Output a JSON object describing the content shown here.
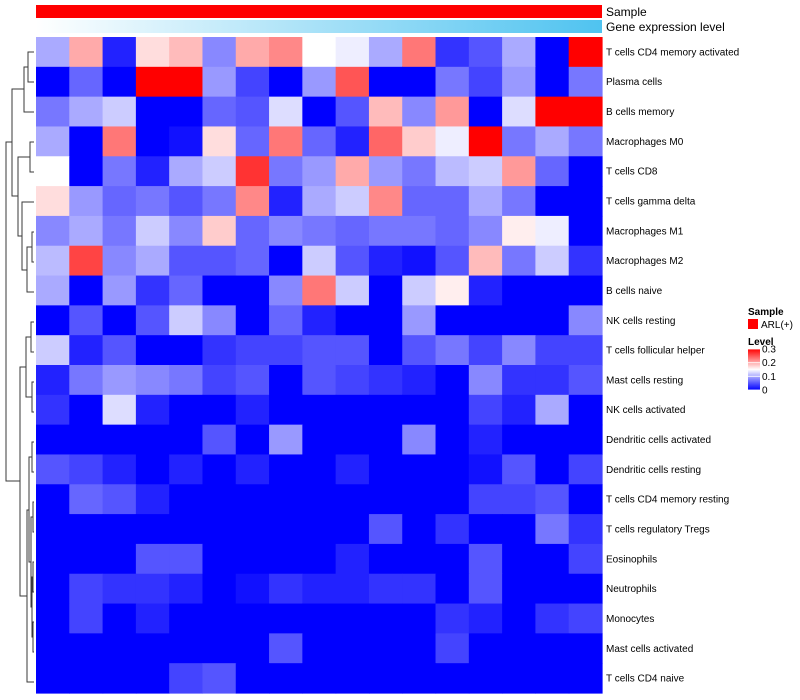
{
  "chart_data": {
    "type": "heatmap",
    "annotations": [
      {
        "name": "Sample",
        "type": "constant",
        "color": "#ff0000"
      },
      {
        "name": "Gene expression level",
        "type": "gradient",
        "color_low": "#ffffff",
        "color_high": "#4fc3f0"
      }
    ],
    "rows": [
      "T cells CD4 memory activated",
      "Plasma cells",
      "B cells memory",
      "Macrophages M0",
      "T cells CD8",
      "T cells gamma delta",
      "Macrophages M1",
      "Macrophages M2",
      "B cells naive",
      "NK cells resting",
      "T cells follicular helper",
      "Mast cells resting",
      "NK cells activated",
      "Dendritic cells activated",
      "Dendritic cells resting",
      "T cells CD4 memory resting",
      "T cells regulatory  Tregs",
      "Eosinophils",
      "Neutrophils",
      "Monocytes",
      "Mast cells activated",
      "T cells CD4 naive"
    ],
    "n_columns": 17,
    "values": [
      [
        0.1,
        0.2,
        0.02,
        0.17,
        0.19,
        0.08,
        0.2,
        0.22,
        0.15,
        0.14,
        0.1,
        0.23,
        0.03,
        0.05,
        0.1,
        0.0,
        0.3
      ],
      [
        0.0,
        0.06,
        0.0,
        0.3,
        0.3,
        0.09,
        0.04,
        0.0,
        0.09,
        0.25,
        0.0,
        0.0,
        0.07,
        0.04,
        0.09,
        0.0,
        0.07
      ],
      [
        0.07,
        0.1,
        0.12,
        0.0,
        0.0,
        0.06,
        0.05,
        0.13,
        0.0,
        0.05,
        0.19,
        0.08,
        0.21,
        0.0,
        0.13,
        0.3,
        0.3
      ],
      [
        0.1,
        0.0,
        0.23,
        0.0,
        0.01,
        0.17,
        0.06,
        0.23,
        0.06,
        0.02,
        0.24,
        0.18,
        0.14,
        0.3,
        0.07,
        0.1,
        0.07
      ],
      [
        0.15,
        0.0,
        0.07,
        0.02,
        0.1,
        0.12,
        0.27,
        0.07,
        0.09,
        0.2,
        0.09,
        0.07,
        0.11,
        0.12,
        0.21,
        0.06,
        0.0
      ],
      [
        0.17,
        0.09,
        0.06,
        0.07,
        0.05,
        0.07,
        0.22,
        0.02,
        0.1,
        0.12,
        0.22,
        0.06,
        0.06,
        0.1,
        0.07,
        0.0,
        0.0
      ],
      [
        0.08,
        0.1,
        0.07,
        0.12,
        0.08,
        0.18,
        0.06,
        0.08,
        0.07,
        0.06,
        0.07,
        0.07,
        0.06,
        0.08,
        0.16,
        0.14,
        0.0
      ],
      [
        0.11,
        0.26,
        0.08,
        0.1,
        0.05,
        0.05,
        0.06,
        0.0,
        0.12,
        0.05,
        0.02,
        0.01,
        0.05,
        0.19,
        0.07,
        0.12,
        0.03
      ],
      [
        0.1,
        0.0,
        0.09,
        0.03,
        0.06,
        0.0,
        0.0,
        0.08,
        0.23,
        0.12,
        0.0,
        0.12,
        0.16,
        0.02,
        0.0,
        0.0,
        0.0
      ],
      [
        0.0,
        0.05,
        0.0,
        0.05,
        0.12,
        0.08,
        0.0,
        0.06,
        0.02,
        0.0,
        0.0,
        0.09,
        0.0,
        0.0,
        0.0,
        0.0,
        0.08
      ],
      [
        0.12,
        0.02,
        0.05,
        0.0,
        0.0,
        0.03,
        0.04,
        0.04,
        0.05,
        0.05,
        0.0,
        0.05,
        0.07,
        0.04,
        0.08,
        0.04,
        0.04
      ],
      [
        0.02,
        0.07,
        0.09,
        0.08,
        0.07,
        0.04,
        0.05,
        0.0,
        0.05,
        0.04,
        0.03,
        0.02,
        0.0,
        0.08,
        0.03,
        0.03,
        0.05
      ],
      [
        0.03,
        0.0,
        0.13,
        0.02,
        0.0,
        0.0,
        0.02,
        0.0,
        0.0,
        0.0,
        0.0,
        0.0,
        0.0,
        0.04,
        0.02,
        0.1,
        0.0
      ],
      [
        0.0,
        0.0,
        0.0,
        0.0,
        0.0,
        0.05,
        0.0,
        0.09,
        0.0,
        0.0,
        0.0,
        0.08,
        0.0,
        0.02,
        0.0,
        0.0,
        0.0
      ],
      [
        0.05,
        0.04,
        0.02,
        0.0,
        0.02,
        0.0,
        0.02,
        0.0,
        0.0,
        0.02,
        0.0,
        0.0,
        0.0,
        0.01,
        0.05,
        0.0,
        0.04
      ],
      [
        0.0,
        0.06,
        0.05,
        0.02,
        0.0,
        0.0,
        0.0,
        0.0,
        0.0,
        0.0,
        0.0,
        0.0,
        0.0,
        0.04,
        0.04,
        0.05,
        0.0
      ],
      [
        0.0,
        0.0,
        0.0,
        0.0,
        0.0,
        0.0,
        0.0,
        0.0,
        0.0,
        0.0,
        0.05,
        0.0,
        0.03,
        0.0,
        0.0,
        0.07,
        0.03
      ],
      [
        0.0,
        0.0,
        0.0,
        0.05,
        0.05,
        0.0,
        0.0,
        0.0,
        0.0,
        0.02,
        0.0,
        0.0,
        0.0,
        0.05,
        0.0,
        0.0,
        0.04
      ],
      [
        0.0,
        0.04,
        0.03,
        0.03,
        0.02,
        0.0,
        0.01,
        0.03,
        0.02,
        0.02,
        0.03,
        0.03,
        0.0,
        0.05,
        0.0,
        0.0,
        0.0
      ],
      [
        0.0,
        0.04,
        0.0,
        0.02,
        0.0,
        0.0,
        0.0,
        0.0,
        0.0,
        0.0,
        0.0,
        0.0,
        0.03,
        0.02,
        0.0,
        0.03,
        0.04
      ],
      [
        0.0,
        0.0,
        0.0,
        0.0,
        0.0,
        0.0,
        0.0,
        0.05,
        0.0,
        0.0,
        0.0,
        0.0,
        0.04,
        0.0,
        0.0,
        0.0,
        0.0
      ],
      [
        0.0,
        0.0,
        0.0,
        0.0,
        0.04,
        0.05,
        0.0,
        0.0,
        0.0,
        0.0,
        0.0,
        0.0,
        0.0,
        0.0,
        0.0,
        0.0,
        0.0
      ]
    ],
    "color_scale": {
      "min": 0,
      "max": 0.3,
      "low": "#0000ff",
      "mid": "#ffffff",
      "high": "#ff0000",
      "mid_value": 0.15
    },
    "legend": {
      "sample_title": "Sample",
      "sample_entry": "ARL(+)",
      "sample_color": "#ff0000",
      "level_title": "Level",
      "ticks": [
        "0.3",
        "0.2",
        "0.1",
        "0"
      ],
      "placement": "right"
    }
  }
}
